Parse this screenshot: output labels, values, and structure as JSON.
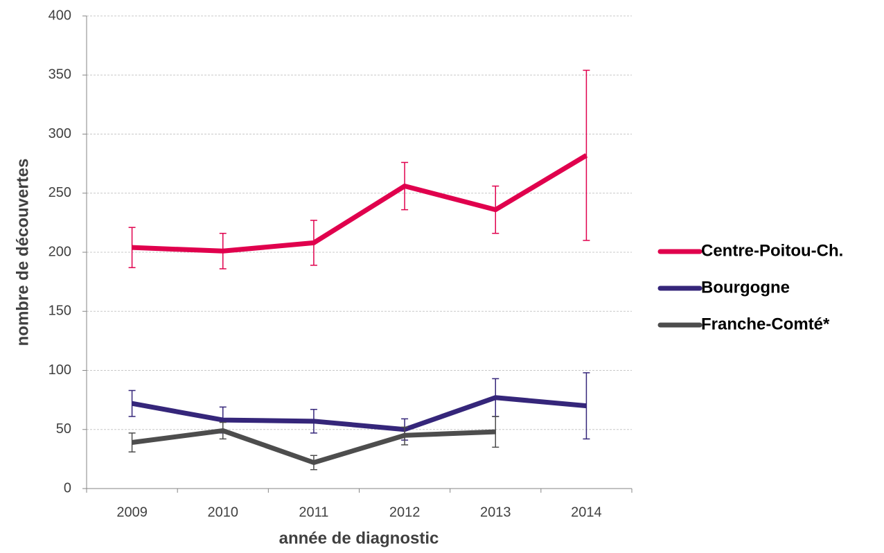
{
  "chart_data": {
    "type": "line",
    "x_label": "année de diagnostic",
    "y_label": "nombre de découvertes",
    "categories": [
      "2009",
      "2010",
      "2011",
      "2012",
      "2013",
      "2014"
    ],
    "series": [
      {
        "name": "Centre-Poitou-Ch.",
        "color": "#e0004d",
        "values": [
          204,
          201,
          208,
          256,
          236,
          282
        ],
        "lower": [
          187,
          186,
          189,
          236,
          216,
          210
        ],
        "upper": [
          221,
          216,
          227,
          276,
          256,
          354
        ]
      },
      {
        "name": "Bourgogne",
        "color": "#35267a",
        "values": [
          72,
          58,
          57,
          50,
          77,
          70
        ],
        "lower": [
          61,
          47,
          47,
          41,
          61,
          42
        ],
        "upper": [
          83,
          69,
          67,
          59,
          93,
          98
        ]
      },
      {
        "name": "Franche-Comté*",
        "color": "#4d4d4d",
        "values": [
          39,
          49,
          22,
          45,
          48,
          null
        ],
        "lower": [
          31,
          42,
          16,
          37,
          35,
          null
        ],
        "upper": [
          47,
          56,
          28,
          52,
          61,
          null
        ]
      }
    ],
    "ylim": [
      0,
      400
    ],
    "yticks": [
      0,
      50,
      100,
      150,
      200,
      250,
      300,
      350,
      400
    ],
    "grid": true,
    "legend": "right"
  }
}
